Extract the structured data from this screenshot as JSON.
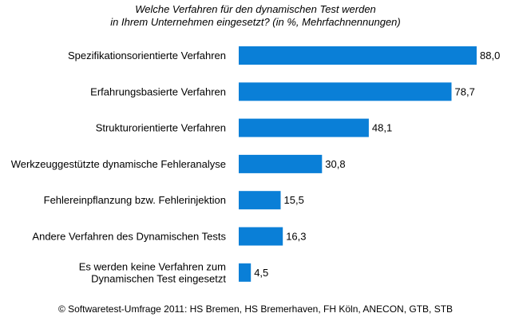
{
  "chart_data": {
    "type": "bar",
    "orientation": "horizontal",
    "title_lines": [
      "Welche Verfahren für den dynamischen Test werden",
      "in Ihrem Unternehmen eingesetzt? (in %, Mehrfachnennungen)"
    ],
    "categories": [
      [
        "Spezifikationsorientierte Verfahren"
      ],
      [
        "Erfahrungsbasierte Verfahren"
      ],
      [
        "Strukturorientierte Verfahren"
      ],
      [
        "Werkzeuggestützte dynamische Fehleranalyse"
      ],
      [
        "Fehlereinpflanzung bzw. Fehlerinjektion"
      ],
      [
        "Andere Verfahren des Dynamischen Tests"
      ],
      [
        "Es werden keine Verfahren zum",
        "Dynamischen Test eingesetzt"
      ]
    ],
    "values": [
      88.0,
      78.7,
      48.1,
      30.8,
      15.5,
      16.3,
      4.5
    ],
    "value_labels": [
      "88,0",
      "78,7",
      "48,1",
      "30,8",
      "15,5",
      "16,3",
      "4,5"
    ],
    "xlim": [
      0,
      88.0
    ],
    "grid": false,
    "legend": "none",
    "bar_color": "#0a7fd7",
    "source": "© Softwaretest-Umfrage 2011: HS Bremen, HS Bremerhaven, FH Köln, ANECON, GTB, STB"
  }
}
